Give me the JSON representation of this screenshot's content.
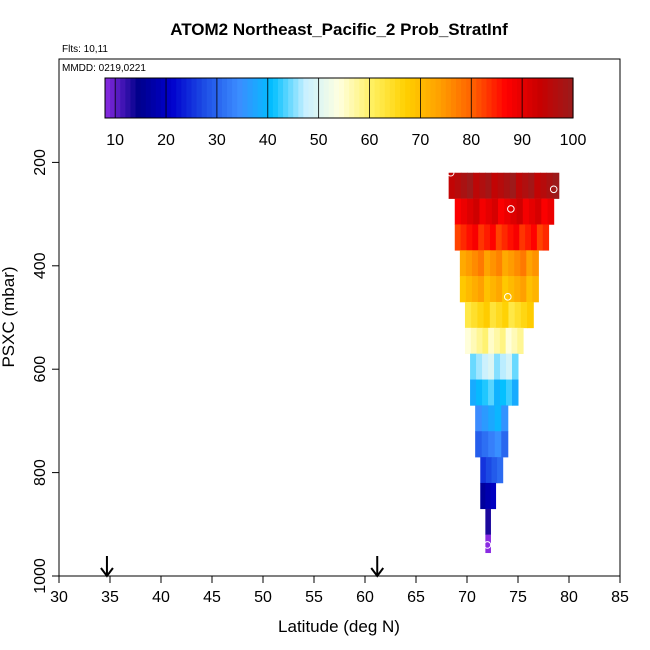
{
  "chart_data": {
    "type": "heatmap",
    "title": "ATOM2 Northeast_Pacific_2 Prob_StratInf",
    "subtitle_flights": "Flts: 10,11",
    "subtitle_dates": "MMDD: 0219,0221",
    "xlabel": "Latitude (deg N)",
    "ylabel": "PSXC (mbar)",
    "xlim": [
      30,
      85
    ],
    "ylim": [
      1000,
      0
    ],
    "x_ticks": [
      "30",
      "35",
      "40",
      "45",
      "50",
      "55",
      "60",
      "65",
      "70",
      "75",
      "80",
      "85"
    ],
    "y_ticks": [
      "200",
      "400",
      "600",
      "800",
      "1000"
    ],
    "colorbar": {
      "ticks": [
        "10",
        "20",
        "30",
        "40",
        "50",
        "60",
        "70",
        "80",
        "90",
        "100"
      ],
      "range": [
        8,
        100
      ],
      "colors": [
        "#8a2be2",
        "#00008b",
        "#0000cd",
        "#1e50e6",
        "#3c8cff",
        "#00bfff",
        "#c8f0ff",
        "#ffffe0",
        "#fff060",
        "#ffd000",
        "#ffa000",
        "#ff6000",
        "#ff0000",
        "#c80000",
        "#9b1b1b"
      ]
    },
    "arrows_latitude": [
      34.7,
      61.2
    ],
    "rows": [
      {
        "p": [
          220,
          270
        ],
        "lat": [
          68.2,
          79.0
        ],
        "value": 97
      },
      {
        "p": [
          270,
          320
        ],
        "lat": [
          68.8,
          78.5
        ],
        "value": 90
      },
      {
        "p": [
          320,
          370
        ],
        "lat": [
          68.8,
          78.0
        ],
        "value": 85
      },
      {
        "p": [
          370,
          420
        ],
        "lat": [
          69.3,
          77.0
        ],
        "value": 75
      },
      {
        "p": [
          420,
          470
        ],
        "lat": [
          69.3,
          77.0
        ],
        "value": 71
      },
      {
        "p": [
          470,
          520
        ],
        "lat": [
          69.8,
          76.5
        ],
        "value": 65
      },
      {
        "p": [
          520,
          570
        ],
        "lat": [
          69.8,
          75.5
        ],
        "value": 57
      },
      {
        "p": [
          570,
          620
        ],
        "lat": [
          70.3,
          75.0
        ],
        "value": 47
      },
      {
        "p": [
          620,
          670
        ],
        "lat": [
          70.3,
          75.0
        ],
        "value": 41
      },
      {
        "p": [
          670,
          720
        ],
        "lat": [
          70.8,
          74.0
        ],
        "value": 37
      },
      {
        "p": [
          720,
          770
        ],
        "lat": [
          70.8,
          74.0
        ],
        "value": 32
      },
      {
        "p": [
          770,
          820
        ],
        "lat": [
          71.3,
          73.5
        ],
        "value": 28
      },
      {
        "p": [
          820,
          870
        ],
        "lat": [
          71.3,
          72.8
        ],
        "value": 19
      },
      {
        "p": [
          870,
          920
        ],
        "lat": [
          71.8,
          72.3
        ],
        "value": 16
      },
      {
        "p": [
          920,
          955
        ],
        "lat": [
          71.8,
          72.3
        ],
        "value": 9
      }
    ],
    "points": [
      {
        "lat": 68.4,
        "p": 220
      },
      {
        "lat": 78.5,
        "p": 252
      },
      {
        "lat": 74.3,
        "p": 290
      },
      {
        "lat": 74.0,
        "p": 460
      },
      {
        "lat": 72.0,
        "p": 940
      }
    ]
  }
}
